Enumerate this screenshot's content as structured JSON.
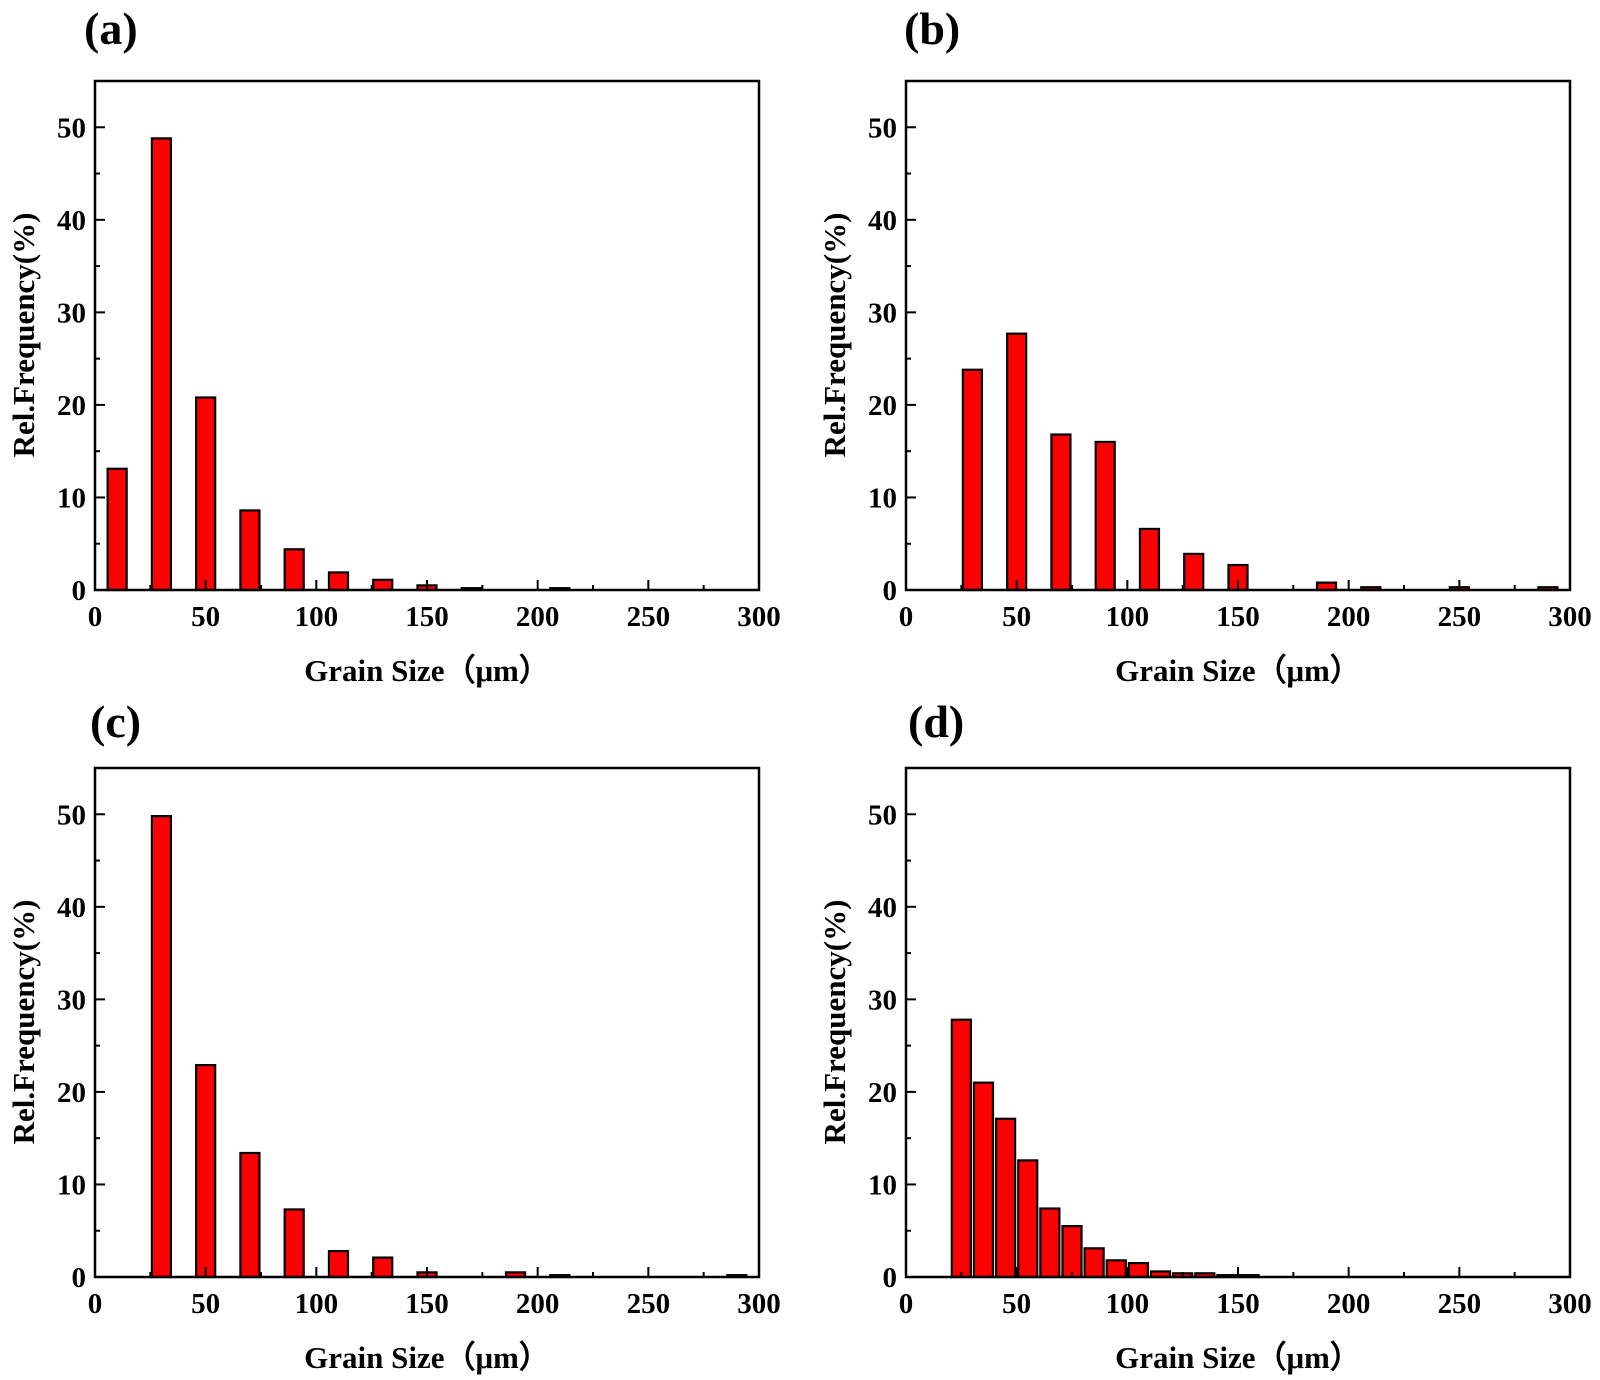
{
  "figure": {
    "style": {
      "bar_fill": "#ff0000",
      "bar_stroke": "#000000",
      "axis_color": "#000000"
    }
  },
  "chart_data": [
    {
      "type": "bar",
      "panel": "(a)",
      "xlabel": "Grain Size（μm）",
      "ylabel": "Rel.Frequency(%)",
      "xlim": [
        0,
        300
      ],
      "ylim": [
        0,
        55
      ],
      "xticks": [
        0,
        50,
        100,
        150,
        200,
        250,
        300
      ],
      "yticks": [
        0,
        10,
        20,
        30,
        40,
        50
      ],
      "bin_width": 20,
      "bar_width_data": 8.6,
      "x": [
        10,
        30,
        50,
        70,
        90,
        110,
        130,
        150,
        170,
        210
      ],
      "values": [
        13.1,
        48.8,
        20.8,
        8.6,
        4.4,
        1.9,
        1.1,
        0.5,
        0.2,
        0.2
      ]
    },
    {
      "type": "bar",
      "panel": "(b)",
      "xlabel": "Grain Size（μm）",
      "ylabel": "Rel.Frequency(%)",
      "xlim": [
        0,
        300
      ],
      "ylim": [
        0,
        55
      ],
      "xticks": [
        0,
        50,
        100,
        150,
        200,
        250,
        300
      ],
      "yticks": [
        0,
        10,
        20,
        30,
        40,
        50
      ],
      "bin_width": 20,
      "bar_width_data": 8.6,
      "x": [
        30,
        50,
        70,
        90,
        110,
        130,
        150,
        190,
        210,
        250,
        290
      ],
      "values": [
        23.8,
        27.7,
        16.8,
        16.0,
        6.6,
        3.9,
        2.7,
        0.8,
        0.3,
        0.3,
        0.3
      ]
    },
    {
      "type": "bar",
      "panel": "(c)",
      "xlabel": "Grain Size（μm）",
      "ylabel": "Rel.Frequency(%)",
      "xlim": [
        0,
        300
      ],
      "ylim": [
        0,
        55
      ],
      "xticks": [
        0,
        50,
        100,
        150,
        200,
        250,
        300
      ],
      "yticks": [
        0,
        10,
        20,
        30,
        40,
        50
      ],
      "bin_width": 20,
      "bar_width_data": 8.6,
      "x": [
        30,
        50,
        70,
        90,
        110,
        130,
        150,
        190,
        210,
        290
      ],
      "values": [
        49.8,
        22.9,
        13.4,
        7.3,
        2.8,
        2.1,
        0.5,
        0.5,
        0.2,
        0.2
      ]
    },
    {
      "type": "bar",
      "panel": "(d)",
      "xlabel": "Grain Size（μm）",
      "ylabel": "Rel.Frequency(%)",
      "xlim": [
        0,
        300
      ],
      "ylim": [
        0,
        55
      ],
      "xticks": [
        0,
        50,
        100,
        150,
        200,
        250,
        300
      ],
      "yticks": [
        0,
        10,
        20,
        30,
        40,
        50
      ],
      "bin_width": 10,
      "bar_width_data": 8.6,
      "x": [
        25,
        35,
        45,
        55,
        65,
        75,
        85,
        95,
        105,
        115,
        125,
        135,
        145,
        155
      ],
      "values": [
        27.8,
        21.0,
        17.1,
        12.6,
        7.4,
        5.5,
        3.1,
        1.8,
        1.5,
        0.6,
        0.4,
        0.4,
        0.2,
        0.2
      ]
    }
  ]
}
